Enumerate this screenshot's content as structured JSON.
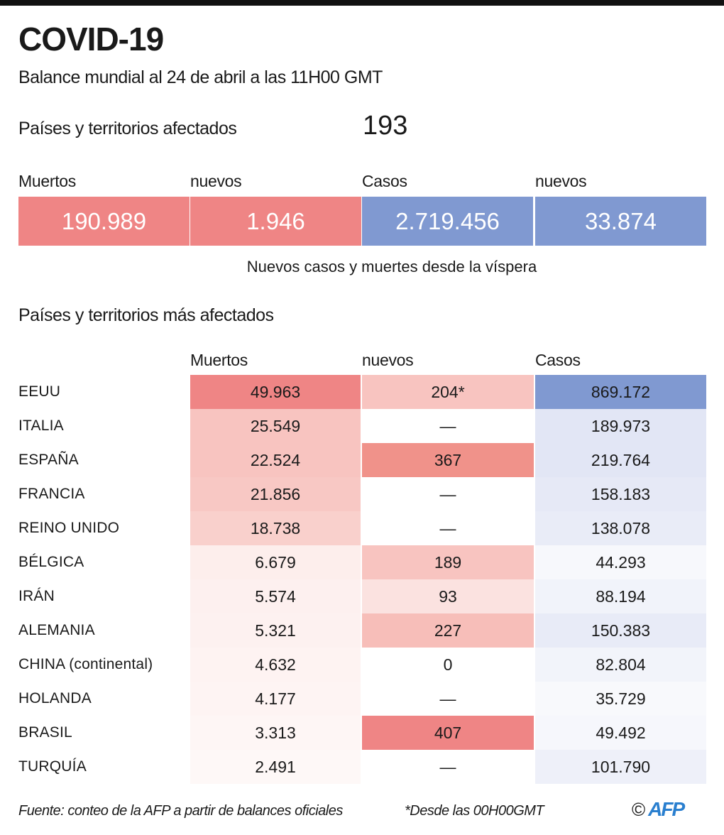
{
  "title": "COVID-19",
  "subtitle": "Balance mundial al 24 de abril a las 11H00 GMT",
  "affected": {
    "label": "Países y territorios afectados",
    "value": "193"
  },
  "summary": {
    "headers": [
      "Muertos",
      "nuevos",
      "Casos",
      "nuevos"
    ],
    "values": [
      "190.989",
      "1.946",
      "2.719.456",
      "33.874"
    ],
    "colors": [
      "#ef8585",
      "#ef8585",
      "#8099d1",
      "#8099d1"
    ],
    "note": "Nuevos casos y muertes desde la víspera"
  },
  "chart_data": {
    "type": "table",
    "title": "Países y territorios más afectados",
    "columns": [
      "Muertos",
      "nuevos",
      "Casos"
    ],
    "rows": [
      {
        "country": "EEUU",
        "deaths": "49.963",
        "new": "204*",
        "cases": "869.172",
        "colors": [
          "#ef8585",
          "#f8c4c0",
          "#8099d1"
        ]
      },
      {
        "country": "ITALIA",
        "deaths": "25.549",
        "new": "—",
        "cases": "189.973",
        "colors": [
          "#f8c4c0",
          "#ffffff",
          "#e2e6f5"
        ]
      },
      {
        "country": "ESPAÑA",
        "deaths": "22.524",
        "new": "367",
        "cases": "219.764",
        "colors": [
          "#f8c4c0",
          "#f0928a",
          "#e2e6f5"
        ]
      },
      {
        "country": "FRANCIA",
        "deaths": "21.856",
        "new": "—",
        "cases": "158.183",
        "colors": [
          "#f8c8c4",
          "#ffffff",
          "#e6e9f6"
        ]
      },
      {
        "country": "REINO UNIDO",
        "deaths": "18.738",
        "new": "—",
        "cases": "138.078",
        "colors": [
          "#f9d0cc",
          "#ffffff",
          "#e9ecf7"
        ]
      },
      {
        "country": "BÉLGICA",
        "deaths": "6.679",
        "new": "189",
        "cases": "44.293",
        "colors": [
          "#fdeeec",
          "#f8c4c0",
          "#f7f8fc"
        ]
      },
      {
        "country": "IRÁN",
        "deaths": "5.574",
        "new": "93",
        "cases": "88.194",
        "colors": [
          "#fdf0ef",
          "#fbe2e0",
          "#f1f3fa"
        ]
      },
      {
        "country": "ALEMANIA",
        "deaths": "5.321",
        "new": "227",
        "cases": "150.383",
        "colors": [
          "#fdf1f0",
          "#f7beb9",
          "#e8ebf7"
        ]
      },
      {
        "country": "CHINA (continental)",
        "deaths": "4.632",
        "new": "0",
        "cases": "82.804",
        "colors": [
          "#fef3f2",
          "#ffffff",
          "#f2f4fa"
        ]
      },
      {
        "country": "HOLANDA",
        "deaths": "4.177",
        "new": "—",
        "cases": "35.729",
        "colors": [
          "#fef4f3",
          "#ffffff",
          "#f8f9fc"
        ]
      },
      {
        "country": "BRASIL",
        "deaths": "3.313",
        "new": "407",
        "cases": "49.492",
        "colors": [
          "#fef6f5",
          "#ef8585",
          "#f6f7fc"
        ]
      },
      {
        "country": "TURQUÍA",
        "deaths": "2.491",
        "new": "—",
        "cases": "101.790",
        "colors": [
          "#fef8f7",
          "#ffffff",
          "#eef0f9"
        ]
      }
    ]
  },
  "footer": {
    "source": "Fuente: conteo de la AFP a partir de balances oficiales",
    "note": "*Desde las 00H00GMT",
    "copyright": "©",
    "logo": "AFP"
  }
}
